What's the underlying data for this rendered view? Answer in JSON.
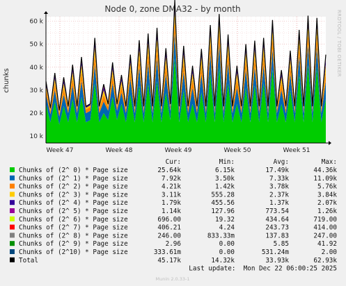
{
  "chart_data": {
    "type": "area",
    "title": "Node 0, zone DMA32 - by month",
    "ylabel": "chunks",
    "side_label": "RRDTOOL / TOBI OETIKER",
    "ylim": [
      7000,
      62000
    ],
    "yticks": [
      10000,
      20000,
      30000,
      40000,
      50000,
      60000
    ],
    "ytick_labels": [
      "10 k",
      "20 k",
      "30 k",
      "40 k",
      "50 k",
      "60 k"
    ],
    "xtick_labels": [
      "Week 47",
      "Week 48",
      "Week 49",
      "Week 50",
      "Week 51"
    ],
    "grid": true,
    "legend_position": "bottom",
    "legend_header": [
      "Cur:",
      "Min:",
      "Avg:",
      "Max:"
    ],
    "series": [
      {
        "name": "Chunks of (2^ 0) * Page size",
        "color": "#00cc00",
        "cur": "25.64k",
        "min": "6.15k",
        "avg": "17.49k",
        "max": "44.36k",
        "values": [
          24,
          16,
          25,
          15,
          23,
          16,
          26,
          16,
          27,
          16,
          17,
          33,
          16,
          20,
          17,
          27,
          17,
          24,
          16,
          28,
          16,
          32,
          16,
          33,
          16,
          34,
          16,
          29,
          17,
          44,
          16,
          30,
          16,
          24,
          16,
          29,
          16,
          37,
          16,
          40,
          16,
          33,
          16,
          24,
          16,
          31,
          16,
          32,
          16,
          33,
          16,
          39,
          16,
          24,
          16,
          30,
          16,
          37,
          16,
          41,
          16,
          40,
          16,
          26
        ]
      },
      {
        "name": "Chunks of (2^ 1) * Page size",
        "color": "#0066b3",
        "cur": "7.92k",
        "min": "3.50k",
        "avg": "7.33k",
        "max": "11.09k",
        "values": [
          4,
          3.5,
          5,
          3.5,
          5,
          4,
          6,
          4,
          7,
          4,
          4,
          8,
          4,
          5,
          4,
          6,
          4,
          5,
          4,
          7,
          4,
          8,
          4,
          9,
          4,
          10,
          4,
          8,
          4,
          11,
          4,
          8,
          4,
          7,
          4,
          8,
          4,
          9,
          4,
          10,
          4,
          9,
          4,
          7,
          4,
          8,
          4,
          8,
          4,
          8,
          4,
          9,
          4,
          6,
          4,
          7,
          4,
          8,
          4,
          9,
          4,
          9,
          4,
          7.9
        ]
      },
      {
        "name": "Chunks of (2^ 2) * Page size",
        "color": "#ff8000",
        "cur": "4.21k",
        "min": "1.42k",
        "avg": "3.78k",
        "max": "5.76k",
        "values": [
          2.5,
          1.5,
          3,
          1.5,
          3,
          1.6,
          3.5,
          1.6,
          4,
          1.6,
          1.7,
          4.5,
          1.6,
          3,
          1.6,
          3.5,
          1.6,
          3,
          1.6,
          4,
          1.6,
          4.5,
          1.6,
          5,
          1.6,
          5.2,
          1.6,
          4.5,
          1.6,
          5.7,
          1.6,
          4.5,
          1.6,
          4,
          1.6,
          4.5,
          1.6,
          5,
          1.6,
          5.3,
          1.6,
          5,
          1.6,
          4,
          1.6,
          4.5,
          1.6,
          4.6,
          1.6,
          4.7,
          1.6,
          5,
          1.6,
          3.5,
          1.6,
          4,
          1.6,
          4.5,
          1.6,
          5,
          1.6,
          5,
          1.6,
          4.2
        ]
      },
      {
        "name": "Chunks of (2^ 3) * Page size",
        "color": "#ffcc00",
        "cur": "3.11k",
        "min": "555.28",
        "avg": "2.37k",
        "max": "3.84k",
        "values": [
          1.5,
          0.6,
          2,
          0.6,
          2,
          0.7,
          2.5,
          0.7,
          3,
          0.7,
          0.7,
          3.3,
          0.7,
          2,
          0.7,
          2.5,
          0.7,
          2,
          0.7,
          3,
          0.7,
          3.3,
          0.7,
          3.5,
          0.7,
          3.6,
          0.7,
          3,
          0.7,
          3.8,
          0.7,
          3,
          0.7,
          2.5,
          0.7,
          3,
          0.7,
          3.4,
          0.7,
          3.6,
          0.7,
          3.3,
          0.7,
          2.5,
          0.7,
          3,
          0.7,
          3.1,
          0.7,
          3.2,
          0.7,
          3.4,
          0.7,
          2.4,
          0.7,
          2.8,
          0.7,
          3,
          0.7,
          3.3,
          0.7,
          3.3,
          0.7,
          3.1
        ]
      },
      {
        "name": "Chunks of (2^ 4) * Page size",
        "color": "#330099",
        "cur": "1.79k",
        "min": "455.56",
        "avg": "1.37k",
        "max": "2.07k",
        "values": [
          0.9,
          0.5,
          1.1,
          0.5,
          1.2,
          0.5,
          1.4,
          0.5,
          1.6,
          0.5,
          0.5,
          1.8,
          0.5,
          1.2,
          0.5,
          1.4,
          0.5,
          1.2,
          0.5,
          1.6,
          0.5,
          1.8,
          0.5,
          1.9,
          0.5,
          2,
          0.5,
          1.7,
          0.5,
          2.07,
          0.5,
          1.7,
          0.5,
          1.4,
          0.5,
          1.6,
          0.5,
          1.8,
          0.5,
          1.9,
          0.5,
          1.8,
          0.5,
          1.4,
          0.5,
          1.6,
          0.5,
          1.7,
          0.5,
          1.7,
          0.5,
          1.8,
          0.5,
          1.3,
          0.5,
          1.5,
          0.5,
          1.6,
          0.5,
          1.8,
          0.5,
          1.8,
          0.5,
          1.79
        ]
      },
      {
        "name": "Chunks of (2^ 5) * Page size",
        "color": "#990099",
        "cur": "1.14k",
        "min": "127.96",
        "avg": "773.54",
        "max": "1.26k",
        "values": [
          0.5,
          0.15,
          0.7,
          0.15,
          0.7,
          0.15,
          0.8,
          0.15,
          0.9,
          0.15,
          0.15,
          1,
          0.15,
          0.7,
          0.15,
          0.8,
          0.15,
          0.7,
          0.15,
          0.9,
          0.15,
          1,
          0.15,
          1.1,
          0.15,
          1.1,
          0.15,
          1,
          0.15,
          1.26,
          0.15,
          1,
          0.15,
          0.8,
          0.15,
          0.9,
          0.15,
          1,
          0.15,
          1.1,
          0.15,
          1,
          0.15,
          0.8,
          0.15,
          0.9,
          0.15,
          1,
          0.15,
          1,
          0.15,
          1.1,
          0.15,
          0.7,
          0.15,
          0.9,
          0.15,
          1,
          0.15,
          1.1,
          0.15,
          1.1,
          0.15,
          1.14
        ]
      },
      {
        "name": "Chunks of (2^ 6) * Page size",
        "color": "#ccff00",
        "cur": "696.00",
        "min": "19.32",
        "avg": "434.64",
        "max": "719.00",
        "values": [
          0.3,
          0.02,
          0.4,
          0.02,
          0.4,
          0.02,
          0.5,
          0.02,
          0.5,
          0.02,
          0.02,
          0.6,
          0.02,
          0.4,
          0.02,
          0.5,
          0.02,
          0.4,
          0.02,
          0.5,
          0.02,
          0.6,
          0.02,
          0.6,
          0.02,
          0.65,
          0.02,
          0.55,
          0.02,
          0.72,
          0.02,
          0.55,
          0.02,
          0.5,
          0.02,
          0.5,
          0.02,
          0.6,
          0.02,
          0.65,
          0.02,
          0.6,
          0.02,
          0.5,
          0.02,
          0.55,
          0.02,
          0.6,
          0.02,
          0.6,
          0.02,
          0.65,
          0.02,
          0.45,
          0.02,
          0.55,
          0.02,
          0.6,
          0.02,
          0.65,
          0.02,
          0.65,
          0.02,
          0.7
        ]
      },
      {
        "name": "Chunks of (2^ 7) * Page size",
        "color": "#ff0000",
        "cur": "406.21",
        "min": "4.24",
        "avg": "243.73",
        "max": "414.00",
        "values": [
          0.15,
          0.005,
          0.2,
          0.005,
          0.2,
          0.005,
          0.25,
          0.005,
          0.3,
          0.005,
          0.005,
          0.35,
          0.005,
          0.2,
          0.005,
          0.25,
          0.005,
          0.2,
          0.005,
          0.3,
          0.005,
          0.35,
          0.005,
          0.35,
          0.005,
          0.38,
          0.005,
          0.33,
          0.005,
          0.41,
          0.005,
          0.33,
          0.005,
          0.28,
          0.005,
          0.3,
          0.005,
          0.35,
          0.005,
          0.38,
          0.005,
          0.35,
          0.005,
          0.28,
          0.005,
          0.32,
          0.005,
          0.35,
          0.005,
          0.35,
          0.005,
          0.38,
          0.005,
          0.25,
          0.005,
          0.3,
          0.005,
          0.35,
          0.005,
          0.38,
          0.005,
          0.38,
          0.005,
          0.406
        ]
      },
      {
        "name": "Chunks of (2^ 8) * Page size",
        "color": "#808080",
        "cur": "246.00",
        "min": "833.33m",
        "avg": "137.83",
        "max": "247.00",
        "values": [
          0.08,
          0.001,
          0.1,
          0.001,
          0.1,
          0.001,
          0.13,
          0.001,
          0.15,
          0.001,
          0.001,
          0.2,
          0.001,
          0.12,
          0.001,
          0.14,
          0.001,
          0.12,
          0.001,
          0.16,
          0.001,
          0.2,
          0.001,
          0.2,
          0.001,
          0.22,
          0.001,
          0.19,
          0.001,
          0.247,
          0.001,
          0.19,
          0.001,
          0.16,
          0.001,
          0.17,
          0.001,
          0.2,
          0.001,
          0.22,
          0.001,
          0.2,
          0.001,
          0.16,
          0.001,
          0.18,
          0.001,
          0.2,
          0.001,
          0.2,
          0.001,
          0.22,
          0.001,
          0.14,
          0.001,
          0.17,
          0.001,
          0.2,
          0.001,
          0.22,
          0.001,
          0.22,
          0.001,
          0.246
        ]
      },
      {
        "name": "Chunks of (2^ 9) * Page size",
        "color": "#008f00",
        "cur": "2.96",
        "min": "0.00",
        "avg": "5.85",
        "max": "41.92",
        "values": [
          0.004,
          0,
          0.005,
          0,
          0.005,
          0,
          0.006,
          0,
          0.007,
          0,
          0,
          0.01,
          0,
          0.005,
          0,
          0.006,
          0,
          0.005,
          0,
          0.008,
          0,
          0.01,
          0,
          0.012,
          0,
          0.02,
          0,
          0.01,
          0,
          0.04,
          0,
          0.01,
          0,
          0.006,
          0,
          0.007,
          0,
          0.008,
          0,
          0.009,
          0,
          0.008,
          0,
          0.005,
          0,
          0.006,
          0,
          0.006,
          0,
          0.006,
          0,
          0.007,
          0,
          0.004,
          0,
          0.005,
          0,
          0.005,
          0,
          0.005,
          0,
          0.004,
          0,
          0.003
        ]
      },
      {
        "name": "Chunks of (2^10) * Page size",
        "color": "#00487d",
        "cur": "333.61m",
        "min": "0.00",
        "avg": "531.24m",
        "max": "2.00",
        "values": [
          0.0005,
          0,
          0.0005,
          0,
          0.0005,
          0,
          0.0006,
          0,
          0.0007,
          0,
          0,
          0.001,
          0,
          0.0005,
          0,
          0.0006,
          0,
          0.0005,
          0,
          0.0008,
          0,
          0.001,
          0,
          0.0012,
          0,
          0.0015,
          0,
          0.001,
          0,
          0.002,
          0,
          0.001,
          0,
          0.0006,
          0,
          0.0007,
          0,
          0.0008,
          0,
          0.0009,
          0,
          0.0008,
          0,
          0.0005,
          0,
          0.0006,
          0,
          0.0006,
          0,
          0.0006,
          0,
          0.0007,
          0,
          0.0004,
          0,
          0.0005,
          0,
          0.0005,
          0,
          0.0005,
          0,
          0.0004,
          0,
          0.0003
        ]
      }
    ],
    "total": {
      "name": "Total",
      "color": "#000000",
      "cur": "45.17k",
      "min": "14.32k",
      "avg": "33.93k",
      "max": "62.93k"
    },
    "last_update": "Last update:  Mon Dec 22 06:00:25 2025",
    "footer": "Munin 2.0.33-1"
  }
}
